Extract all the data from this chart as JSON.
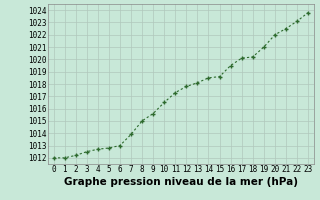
{
  "x": [
    0,
    1,
    2,
    3,
    4,
    5,
    6,
    7,
    8,
    9,
    10,
    11,
    12,
    13,
    14,
    15,
    16,
    17,
    18,
    19,
    20,
    21,
    22,
    23
  ],
  "y": [
    1012.0,
    1012.0,
    1012.2,
    1012.5,
    1012.7,
    1012.8,
    1013.0,
    1013.9,
    1015.0,
    1015.6,
    1016.5,
    1017.3,
    1017.8,
    1018.1,
    1018.5,
    1018.6,
    1019.5,
    1020.1,
    1020.2,
    1021.0,
    1022.0,
    1022.5,
    1023.1,
    1023.8
  ],
  "line_color": "#2d6a2d",
  "marker": "+",
  "bg_color": "#c8e8d8",
  "grid_color": "#b0c8bc",
  "xlabel": "Graphe pression niveau de la mer (hPa)",
  "ylim": [
    1011.5,
    1024.5
  ],
  "xlim": [
    -0.5,
    23.5
  ],
  "yticks": [
    1012,
    1013,
    1014,
    1015,
    1016,
    1017,
    1018,
    1019,
    1020,
    1021,
    1022,
    1023,
    1024
  ],
  "xticks": [
    0,
    1,
    2,
    3,
    4,
    5,
    6,
    7,
    8,
    9,
    10,
    11,
    12,
    13,
    14,
    15,
    16,
    17,
    18,
    19,
    20,
    21,
    22,
    23
  ],
  "tick_fontsize": 5.5,
  "xlabel_fontsize": 7.5
}
